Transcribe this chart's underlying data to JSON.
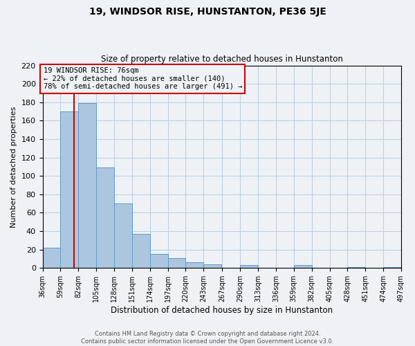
{
  "title": "19, WINDSOR RISE, HUNSTANTON, PE36 5JE",
  "subtitle": "Size of property relative to detached houses in Hunstanton",
  "xlabel": "Distribution of detached houses by size in Hunstanton",
  "ylabel": "Number of detached properties",
  "bin_edges": [
    36,
    59,
    82,
    105,
    128,
    151,
    174,
    197,
    220,
    243,
    267,
    290,
    313,
    336,
    359,
    382,
    405,
    428,
    451,
    474,
    497
  ],
  "bar_heights": [
    22,
    170,
    179,
    109,
    70,
    37,
    15,
    11,
    6,
    4,
    0,
    3,
    0,
    0,
    3,
    0,
    0,
    1,
    0,
    1
  ],
  "bar_color": "#adc6e0",
  "bar_edge_color": "#5a9cc5",
  "property_size": 76,
  "vline_color": "#cc0000",
  "annotation_text_line1": "19 WINDSOR RISE: 76sqm",
  "annotation_text_line2": "← 22% of detached houses are smaller (140)",
  "annotation_text_line3": "78% of semi-detached houses are larger (491) →",
  "annotation_box_color": "#cc0000",
  "ylim": [
    0,
    220
  ],
  "yticks": [
    0,
    20,
    40,
    60,
    80,
    100,
    120,
    140,
    160,
    180,
    200,
    220
  ],
  "footer_line1": "Contains HM Land Registry data © Crown copyright and database right 2024.",
  "footer_line2": "Contains public sector information licensed under the Open Government Licence v3.0.",
  "background_color": "#eef2f7",
  "grid_color": "#c0cfe0"
}
